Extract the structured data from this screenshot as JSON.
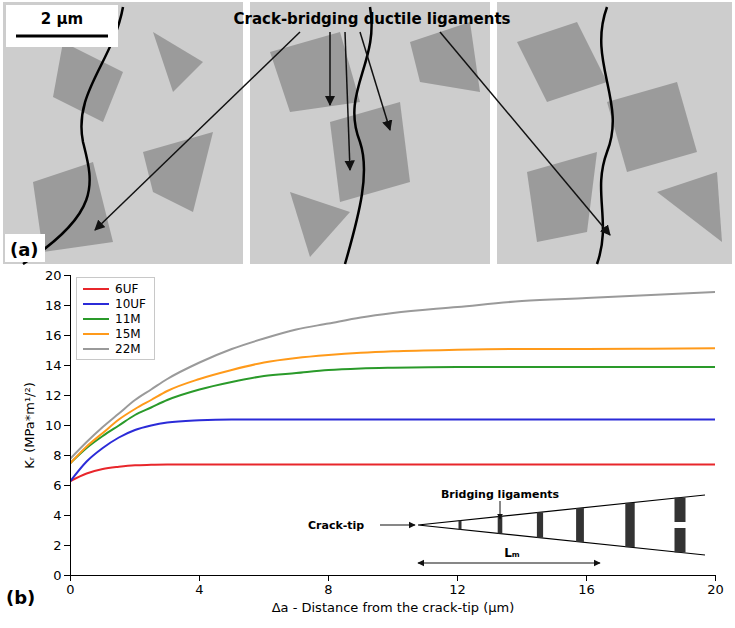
{
  "panel_a": {
    "label": "(a)",
    "scale_bar": "2 µm",
    "annotation": "Crack-bridging ductile ligaments"
  },
  "chart_data": {
    "type": "line",
    "panel_label": "(b)",
    "x_label": "Δa - Distance from the crack-tip (μm)",
    "y_label": "Kᵣ (MPa*m¹/²)",
    "x": [
      0,
      0.5,
      1,
      1.5,
      2,
      2.5,
      3,
      4,
      5,
      6,
      7,
      8,
      9,
      10,
      12,
      14,
      16,
      18,
      20
    ],
    "series": [
      {
        "name": "6UF",
        "color": "#e8262b",
        "values": [
          6.3,
          6.8,
          7.1,
          7.25,
          7.35,
          7.38,
          7.4,
          7.4,
          7.4,
          7.4,
          7.4,
          7.4,
          7.4,
          7.4,
          7.4,
          7.4,
          7.4,
          7.4,
          7.4
        ]
      },
      {
        "name": "10UF",
        "color": "#2b2bd8",
        "values": [
          6.3,
          7.6,
          8.5,
          9.2,
          9.7,
          10.0,
          10.2,
          10.35,
          10.4,
          10.4,
          10.4,
          10.4,
          10.4,
          10.4,
          10.4,
          10.4,
          10.4,
          10.4,
          10.4
        ]
      },
      {
        "name": "11M",
        "color": "#2a9a2a",
        "values": [
          7.5,
          8.5,
          9.3,
          10.0,
          10.7,
          11.2,
          11.7,
          12.4,
          12.9,
          13.3,
          13.5,
          13.7,
          13.8,
          13.85,
          13.9,
          13.9,
          13.9,
          13.9,
          13.9
        ]
      },
      {
        "name": "15M",
        "color": "#ff9a1a",
        "values": [
          7.5,
          8.6,
          9.5,
          10.4,
          11.1,
          11.7,
          12.3,
          13.1,
          13.7,
          14.2,
          14.5,
          14.7,
          14.85,
          14.95,
          15.05,
          15.1,
          15.1,
          15.12,
          15.15
        ]
      },
      {
        "name": "22M",
        "color": "#9a9a9a",
        "values": [
          7.8,
          8.9,
          9.9,
          10.8,
          11.7,
          12.4,
          13.1,
          14.2,
          15.1,
          15.8,
          16.4,
          16.8,
          17.2,
          17.5,
          17.9,
          18.3,
          18.5,
          18.7,
          18.9
        ]
      }
    ],
    "xlim": [
      0,
      20
    ],
    "xticks": [
      0,
      4,
      8,
      12,
      16,
      20
    ],
    "ylim": [
      0,
      20
    ],
    "yticks": [
      0,
      2,
      4,
      6,
      8,
      10,
      12,
      14,
      16,
      18,
      20
    ],
    "legend": "top-left",
    "grid": false,
    "inset": {
      "crack_tip": "Crack-tip",
      "ligaments": "Bridging ligaments",
      "length": "Lₘ"
    }
  }
}
